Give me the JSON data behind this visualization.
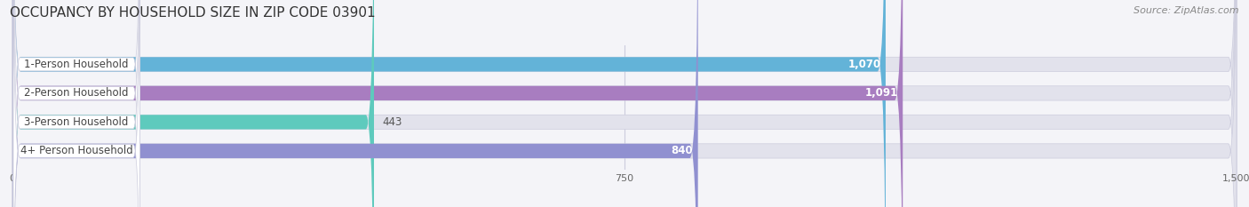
{
  "title": "OCCUPANCY BY HOUSEHOLD SIZE IN ZIP CODE 03901",
  "source": "Source: ZipAtlas.com",
  "categories": [
    "1-Person Household",
    "2-Person Household",
    "3-Person Household",
    "4+ Person Household"
  ],
  "values": [
    1070,
    1091,
    443,
    840
  ],
  "bar_colors": [
    "#63B3D8",
    "#A87DC0",
    "#5ECABD",
    "#9090D0"
  ],
  "xlim_max": 1500,
  "xticks": [
    0,
    750,
    1500
  ],
  "background_color": "#f4f4f8",
  "bar_bg_color": "#e2e2ec",
  "label_box_color": "#ffffff",
  "label_text_color": "#444444",
  "value_inside_color": "#ffffff",
  "value_outside_color": "#555555",
  "title_fontsize": 11,
  "source_fontsize": 8,
  "label_fontsize": 8.5,
  "value_fontsize": 8.5,
  "figsize": [
    14.06,
    2.33
  ],
  "dpi": 100
}
